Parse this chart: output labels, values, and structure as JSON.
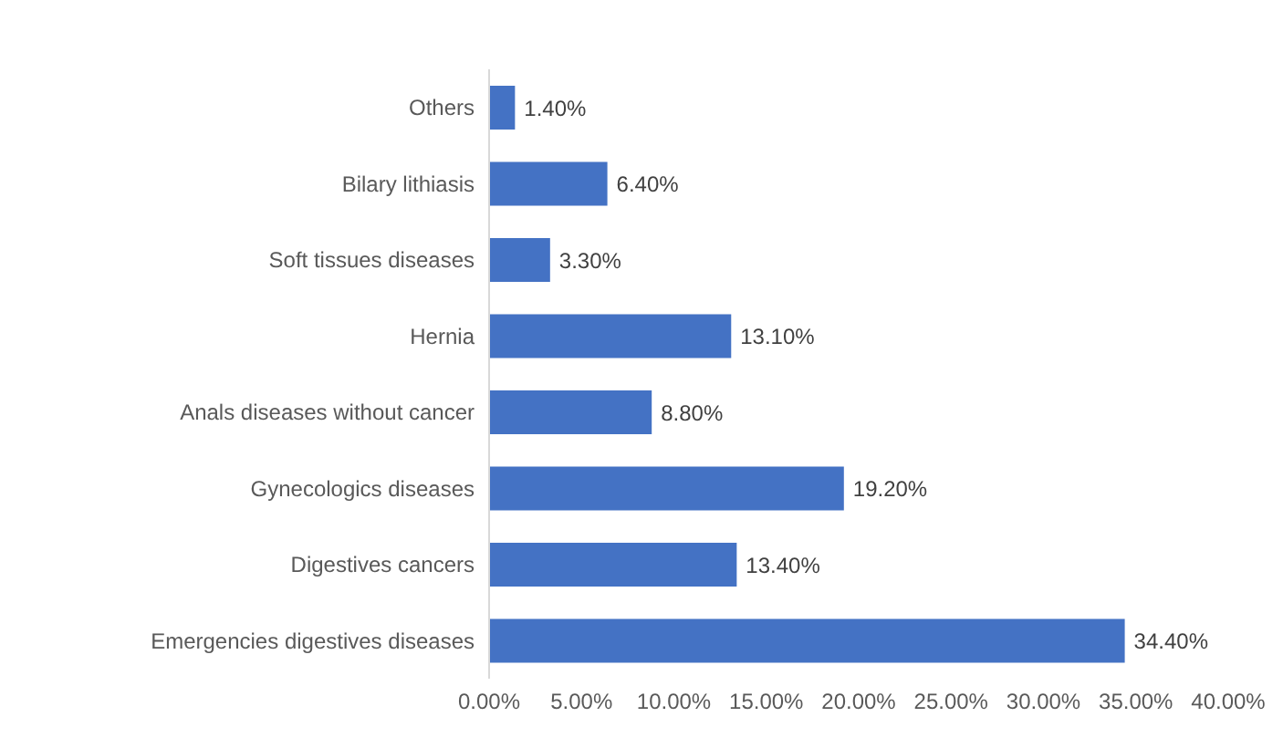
{
  "chart_data": {
    "type": "bar",
    "orientation": "horizontal",
    "categories": [
      "Others",
      "Bilary lithiasis",
      "Soft tissues diseases",
      "Hernia",
      "Anals diseases without cancer",
      "Gynecologics diseases",
      "Digestives cancers",
      "Emergencies digestives diseases"
    ],
    "values": [
      1.4,
      6.4,
      3.3,
      13.1,
      8.8,
      19.2,
      13.4,
      34.4
    ],
    "value_labels": [
      "1.40%",
      "6.40%",
      "3.30%",
      "13.10%",
      "8.80%",
      "19.20%",
      "13.40%",
      "34.40%"
    ],
    "color": "#4472c4",
    "xlim": [
      0,
      40
    ],
    "xticks": [
      {
        "value": 0,
        "label": "0.00%"
      },
      {
        "value": 5,
        "label": "5.00%"
      },
      {
        "value": 10,
        "label": "10.00%"
      },
      {
        "value": 15,
        "label": "15.00%"
      },
      {
        "value": 20,
        "label": "20.00%"
      },
      {
        "value": 25,
        "label": "25.00%"
      },
      {
        "value": 30,
        "label": "30.00%"
      },
      {
        "value": 35,
        "label": "35.00%"
      },
      {
        "value": 40,
        "label": "40.00%"
      }
    ],
    "grid": false,
    "legend": false
  }
}
